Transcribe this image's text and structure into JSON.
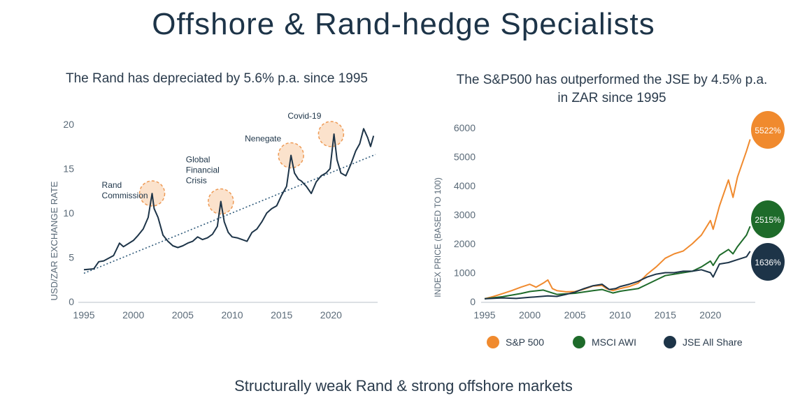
{
  "title": "Offshore & Rand-hedge Specialists",
  "footer": "Structurally weak Rand & strong offshore markets",
  "left": {
    "subtitle": "The Rand has depreciated by 5.6% p.a. since 1995"
  },
  "right": {
    "subtitle_line1": "The S&P500 has outperformed the JSE by 4.5% p.a.",
    "subtitle_line2": "in ZAR since 1995"
  },
  "colors": {
    "navy": "#1d3448",
    "orange": "#f08a2e",
    "green": "#1e6b2a",
    "highlight_fill": "#fbe2cc",
    "highlight_stroke": "#ee9a55"
  },
  "chart_data": [
    {
      "type": "line",
      "ylabel": "USD/ZAR EXCHANGE RATE",
      "xlim": [
        1995,
        2024.5
      ],
      "ylim": [
        0,
        20
      ],
      "xticks": [
        1995,
        2000,
        2005,
        2010,
        2015,
        2020
      ],
      "yticks": [
        0,
        5,
        10,
        15,
        20
      ],
      "series": [
        {
          "x": [
            1995.0,
            1996.0,
            1996.5,
            1997.0,
            1998.0,
            1998.6,
            1999.0,
            2000.0,
            2000.5,
            2001.0,
            2001.5,
            2001.9,
            2002.1,
            2002.5,
            2003.0,
            2003.5,
            2004.0,
            2004.5,
            2005.0,
            2005.5,
            2006.0,
            2006.5,
            2007.0,
            2007.5,
            2008.0,
            2008.5,
            2008.85,
            2009.2,
            2009.6,
            2010.0,
            2010.5,
            2011.0,
            2011.5,
            2012.0,
            2012.5,
            2013.0,
            2013.5,
            2014.0,
            2014.5,
            2015.0,
            2015.5,
            2015.95,
            2016.3,
            2016.7,
            2017.0,
            2017.5,
            2018.0,
            2018.5,
            2019.0,
            2019.5,
            2019.9,
            2020.3,
            2020.6,
            2021.0,
            2021.5,
            2022.0,
            2022.5,
            2022.9,
            2023.3,
            2023.7,
            2024.0,
            2024.3
          ],
          "y": [
            3.6,
            3.7,
            4.5,
            4.6,
            5.2,
            6.6,
            6.2,
            6.9,
            7.5,
            8.2,
            9.5,
            12.2,
            10.5,
            9.5,
            7.5,
            6.8,
            6.3,
            6.1,
            6.3,
            6.6,
            6.8,
            7.3,
            7.0,
            7.2,
            7.6,
            8.5,
            11.3,
            9.0,
            7.8,
            7.3,
            7.2,
            7.0,
            6.8,
            7.8,
            8.2,
            9.0,
            10.0,
            10.5,
            10.8,
            12.0,
            13.0,
            16.5,
            14.5,
            13.8,
            13.6,
            13.0,
            12.2,
            13.5,
            14.2,
            14.5,
            15.0,
            18.9,
            16.0,
            14.5,
            14.2,
            15.5,
            17.0,
            17.8,
            19.5,
            18.5,
            17.5,
            18.7
          ]
        }
      ],
      "trend": {
        "x": [
          1995,
          2024.5
        ],
        "y": [
          3.2,
          16.6
        ]
      },
      "annotations": [
        {
          "label": "Rand Commission",
          "x": 2001.9,
          "y": 12.2
        },
        {
          "label": "Global Financial Crisis",
          "x": 2008.85,
          "y": 11.3
        },
        {
          "label": "Nenegate",
          "x": 2015.95,
          "y": 16.5
        },
        {
          "label": "Covid-19",
          "x": 2020.0,
          "y": 18.9
        }
      ]
    },
    {
      "type": "line",
      "ylabel": "INDEX PRICE (BASED TO 100)",
      "xlim": [
        1995,
        2024.5
      ],
      "ylim": [
        0,
        6000
      ],
      "xticks": [
        1995,
        2000,
        2005,
        2010,
        2015,
        2020
      ],
      "yticks": [
        0,
        1000,
        2000,
        3000,
        4000,
        5000,
        6000
      ],
      "legend_position": "bottom",
      "series": [
        {
          "name": "S&P 500",
          "color": "#f08a2e",
          "end_label": "5522%",
          "x": [
            1995.0,
            1996.0,
            1997.0,
            1998.0,
            1999.0,
            2000.0,
            2000.7,
            2001.5,
            2002.0,
            2002.5,
            2003.0,
            2004.0,
            2005.0,
            2006.0,
            2007.0,
            2008.0,
            2008.5,
            2009.2,
            2010.0,
            2011.0,
            2012.0,
            2013.0,
            2014.0,
            2015.0,
            2016.0,
            2017.0,
            2018.0,
            2019.0,
            2020.0,
            2020.3,
            2021.0,
            2022.0,
            2022.5,
            2023.0,
            2024.0,
            2024.4
          ],
          "y": [
            100,
            180,
            280,
            380,
            500,
            600,
            500,
            640,
            750,
            450,
            380,
            340,
            350,
            430,
            540,
            560,
            450,
            380,
            450,
            520,
            640,
            950,
            1200,
            1500,
            1650,
            1750,
            2000,
            2300,
            2800,
            2500,
            3300,
            4200,
            3600,
            4300,
            5200,
            5600
          ]
        },
        {
          "name": "MSCI AWI",
          "color": "#1e6b2a",
          "end_label": "2515%",
          "x": [
            1995.0,
            1997.0,
            1999.0,
            2000.0,
            2001.5,
            2002.5,
            2003.0,
            2005.0,
            2007.0,
            2008.0,
            2009.2,
            2010.0,
            2012.0,
            2013.0,
            2014.0,
            2015.0,
            2016.0,
            2017.0,
            2018.0,
            2019.0,
            2020.0,
            2020.3,
            2021.0,
            2022.0,
            2022.5,
            2023.0,
            2024.0,
            2024.4
          ],
          "y": [
            100,
            170,
            280,
            350,
            400,
            300,
            250,
            290,
            380,
            420,
            300,
            360,
            450,
            600,
            750,
            900,
            950,
            1000,
            1050,
            1200,
            1400,
            1250,
            1600,
            1800,
            1650,
            1900,
            2300,
            2600
          ]
        },
        {
          "name": "JSE All Share",
          "color": "#1d3448",
          "end_label": "1636%",
          "x": [
            1995.0,
            1997.0,
            1998.5,
            2000.0,
            2002.0,
            2003.0,
            2004.0,
            2005.0,
            2006.0,
            2007.0,
            2008.0,
            2008.8,
            2009.5,
            2010.0,
            2011.0,
            2012.0,
            2013.0,
            2014.0,
            2015.0,
            2016.0,
            2017.0,
            2018.0,
            2019.0,
            2020.0,
            2020.3,
            2021.0,
            2022.0,
            2023.0,
            2024.0,
            2024.4
          ],
          "y": [
            100,
            130,
            110,
            150,
            200,
            180,
            250,
            330,
            450,
            550,
            600,
            420,
            450,
            520,
            600,
            700,
            850,
            950,
            1000,
            1000,
            1050,
            1050,
            1100,
            1000,
            850,
            1300,
            1350,
            1450,
            1550,
            1740
          ]
        }
      ]
    }
  ]
}
